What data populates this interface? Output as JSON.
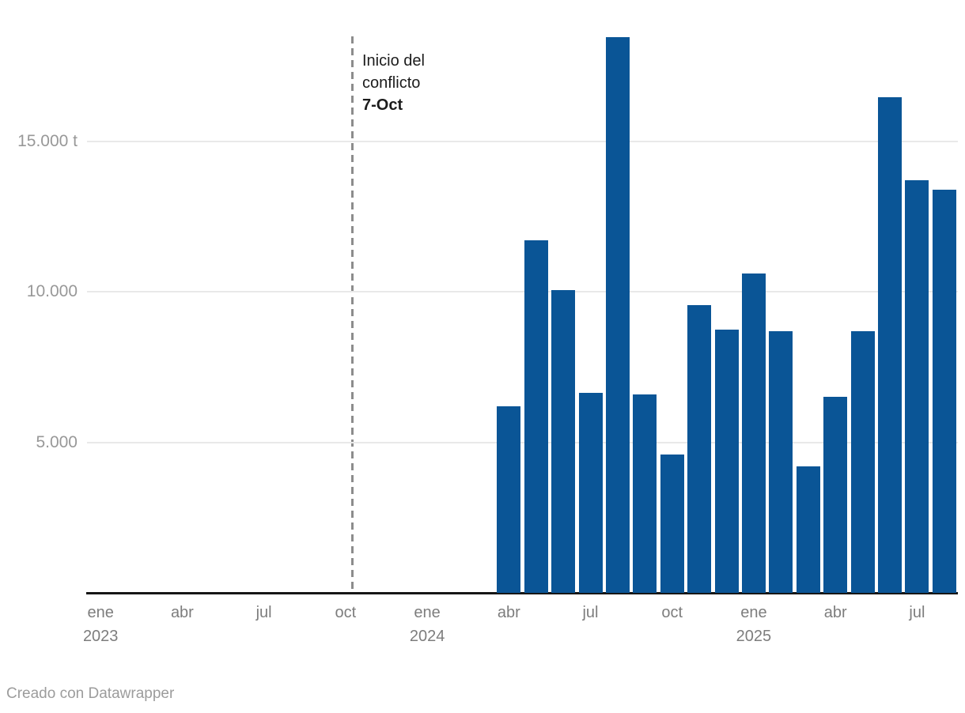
{
  "chart": {
    "annotation": {
      "line1": "Inicio del",
      "line2": "conflicto",
      "line3": "7-Oct"
    },
    "footer": "Creado con Datawrapper",
    "colors": {
      "bar": "#0a5596",
      "grid": "#e9e9e9",
      "axis": "#161616",
      "x_tick_label": "#7d7d7d",
      "y_tick_label": "#989898",
      "dashed_line": "#8c8c8c",
      "annotation_text": "#1c1c1c",
      "footer_text": "#9c9c9c"
    }
  },
  "chart_data": {
    "type": "bar",
    "title": "",
    "ylabel": "",
    "xlabel": "",
    "unit": "t",
    "ylim": [
      0,
      18500
    ],
    "grid": "horizontal",
    "legend": "none",
    "categories": [
      "ene 2023",
      "feb 2023",
      "mar 2023",
      "abr 2023",
      "may 2023",
      "jun 2023",
      "jul 2023",
      "ago 2023",
      "sep 2023",
      "oct 2023",
      "nov 2023",
      "dic 2023",
      "ene 2024",
      "feb 2024",
      "mar 2024",
      "abr 2024",
      "may 2024",
      "jun 2024",
      "jul 2024",
      "ago 2024",
      "sep 2024",
      "oct 2024",
      "nov 2024",
      "dic 2024",
      "ene 2025",
      "feb 2025",
      "mar 2025",
      "abr 2025",
      "may 2025",
      "jun 2025",
      "jul 2025",
      "ago 2025"
    ],
    "values": [
      0,
      0,
      0,
      0,
      0,
      0,
      0,
      0,
      0,
      0,
      0,
      0,
      0,
      0,
      0,
      6200,
      11700,
      10050,
      6650,
      18450,
      6600,
      4600,
      9550,
      8750,
      10600,
      8700,
      4200,
      6500,
      8700,
      16450,
      13700,
      13400
    ],
    "y_ticks": [
      {
        "value": 5000,
        "label": "5.000"
      },
      {
        "value": 10000,
        "label": "10.000"
      },
      {
        "value": 15000,
        "label": "15.000 t"
      }
    ],
    "x_ticks": [
      {
        "index": 0,
        "label": "ene",
        "year": "2023"
      },
      {
        "index": 3,
        "label": "abr"
      },
      {
        "index": 6,
        "label": "jul"
      },
      {
        "index": 9,
        "label": "oct"
      },
      {
        "index": 12,
        "label": "ene",
        "year": "2024"
      },
      {
        "index": 15,
        "label": "abr"
      },
      {
        "index": 18,
        "label": "jul"
      },
      {
        "index": 21,
        "label": "oct"
      },
      {
        "index": 24,
        "label": "ene",
        "year": "2025"
      },
      {
        "index": 27,
        "label": "abr"
      },
      {
        "index": 30,
        "label": "jul"
      }
    ],
    "annotation_marker": {
      "category": "oct 2023",
      "note_date": "7-Oct"
    }
  }
}
